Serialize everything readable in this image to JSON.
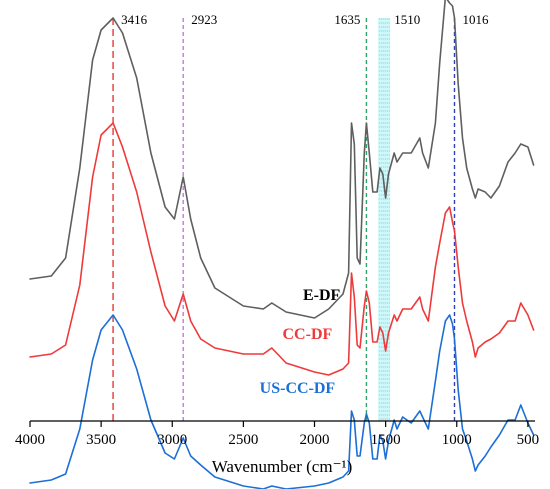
{
  "chart_data": {
    "type": "line",
    "xlabel": "Wavenumber (cm⁻¹)",
    "ylabel": "",
    "x_reversed": true,
    "xlim": [
      4000,
      450
    ],
    "x_ticks": [
      "4000",
      "3500",
      "3000",
      "2500",
      "2000",
      "1500",
      "1000",
      "500"
    ],
    "x_tick_values": [
      4000,
      3500,
      3000,
      2500,
      2000,
      1500,
      1000,
      500
    ],
    "y_ticks": false,
    "grid": false,
    "legend": "inline labels",
    "series": [
      {
        "name": "E-DF",
        "color": "#5f5f5f",
        "points": [
          [
            4000,
            0.13
          ],
          [
            3850,
            0.14
          ],
          [
            3750,
            0.2
          ],
          [
            3650,
            0.5
          ],
          [
            3560,
            0.86
          ],
          [
            3500,
            0.96
          ],
          [
            3416,
            1.0
          ],
          [
            3350,
            0.95
          ],
          [
            3250,
            0.8
          ],
          [
            3150,
            0.55
          ],
          [
            3050,
            0.37
          ],
          [
            2985,
            0.33
          ],
          [
            2923,
            0.47
          ],
          [
            2870,
            0.33
          ],
          [
            2800,
            0.2
          ],
          [
            2700,
            0.1
          ],
          [
            2500,
            0.04
          ],
          [
            2360,
            0.03
          ],
          [
            2300,
            0.05
          ],
          [
            2200,
            0.02
          ],
          [
            2000,
            0.0
          ],
          [
            1900,
            0.03
          ],
          [
            1800,
            0.08
          ],
          [
            1760,
            0.15
          ],
          [
            1740,
            0.65
          ],
          [
            1720,
            0.58
          ],
          [
            1700,
            0.2
          ],
          [
            1680,
            0.18
          ],
          [
            1650,
            0.55
          ],
          [
            1635,
            0.65
          ],
          [
            1615,
            0.55
          ],
          [
            1590,
            0.42
          ],
          [
            1560,
            0.42
          ],
          [
            1540,
            0.5
          ],
          [
            1520,
            0.48
          ],
          [
            1500,
            0.4
          ],
          [
            1480,
            0.48
          ],
          [
            1440,
            0.55
          ],
          [
            1420,
            0.52
          ],
          [
            1380,
            0.55
          ],
          [
            1320,
            0.55
          ],
          [
            1260,
            0.6
          ],
          [
            1240,
            0.55
          ],
          [
            1200,
            0.5
          ],
          [
            1150,
            0.65
          ],
          [
            1120,
            0.85
          ],
          [
            1080,
            1.07
          ],
          [
            1050,
            1.05
          ],
          [
            1030,
            1.04
          ],
          [
            1016,
            1.0
          ],
          [
            990,
            0.78
          ],
          [
            960,
            0.6
          ],
          [
            930,
            0.5
          ],
          [
            890,
            0.43
          ],
          [
            870,
            0.4
          ],
          [
            850,
            0.43
          ],
          [
            800,
            0.42
          ],
          [
            760,
            0.4
          ],
          [
            700,
            0.44
          ],
          [
            640,
            0.52
          ],
          [
            590,
            0.55
          ],
          [
            550,
            0.58
          ],
          [
            500,
            0.57
          ],
          [
            460,
            0.51
          ]
        ]
      },
      {
        "name": "CC-DF",
        "color": "#ee3a3a",
        "points": [
          [
            4000,
            0.0
          ],
          [
            3850,
            0.01
          ],
          [
            3750,
            0.04
          ],
          [
            3650,
            0.24
          ],
          [
            3560,
            0.6
          ],
          [
            3500,
            0.74
          ],
          [
            3416,
            0.78
          ],
          [
            3350,
            0.7
          ],
          [
            3250,
            0.55
          ],
          [
            3150,
            0.35
          ],
          [
            3050,
            0.17
          ],
          [
            2985,
            0.12
          ],
          [
            2923,
            0.21
          ],
          [
            2870,
            0.12
          ],
          [
            2800,
            0.06
          ],
          [
            2700,
            0.03
          ],
          [
            2500,
            0.01
          ],
          [
            2360,
            0.01
          ],
          [
            2300,
            0.03
          ],
          [
            2200,
            -0.02
          ],
          [
            2000,
            -0.05
          ],
          [
            1900,
            -0.06
          ],
          [
            1800,
            -0.04
          ],
          [
            1760,
            -0.02
          ],
          [
            1740,
            0.28
          ],
          [
            1720,
            0.2
          ],
          [
            1700,
            0.04
          ],
          [
            1680,
            0.03
          ],
          [
            1650,
            0.17
          ],
          [
            1635,
            0.22
          ],
          [
            1615,
            0.18
          ],
          [
            1590,
            0.05
          ],
          [
            1560,
            0.05
          ],
          [
            1540,
            0.1
          ],
          [
            1520,
            0.08
          ],
          [
            1500,
            0.02
          ],
          [
            1480,
            0.08
          ],
          [
            1440,
            0.14
          ],
          [
            1420,
            0.12
          ],
          [
            1380,
            0.16
          ],
          [
            1320,
            0.16
          ],
          [
            1260,
            0.2
          ],
          [
            1240,
            0.16
          ],
          [
            1200,
            0.12
          ],
          [
            1150,
            0.3
          ],
          [
            1120,
            0.38
          ],
          [
            1080,
            0.48
          ],
          [
            1050,
            0.5
          ],
          [
            1030,
            0.45
          ],
          [
            1016,
            0.42
          ],
          [
            990,
            0.3
          ],
          [
            960,
            0.18
          ],
          [
            930,
            0.12
          ],
          [
            890,
            0.05
          ],
          [
            870,
            0.0
          ],
          [
            850,
            0.03
          ],
          [
            800,
            0.05
          ],
          [
            760,
            0.06
          ],
          [
            700,
            0.08
          ],
          [
            640,
            0.12
          ],
          [
            590,
            0.12
          ],
          [
            550,
            0.18
          ],
          [
            500,
            0.14
          ],
          [
            460,
            0.09
          ]
        ]
      },
      {
        "name": "US-CC-DF",
        "color": "#1c6fd6",
        "points": [
          [
            4000,
            -0.26
          ],
          [
            3850,
            -0.25
          ],
          [
            3750,
            -0.23
          ],
          [
            3650,
            -0.08
          ],
          [
            3560,
            0.15
          ],
          [
            3500,
            0.25
          ],
          [
            3416,
            0.3
          ],
          [
            3350,
            0.25
          ],
          [
            3250,
            0.12
          ],
          [
            3150,
            -0.05
          ],
          [
            3050,
            -0.16
          ],
          [
            2985,
            -0.18
          ],
          [
            2923,
            -0.11
          ],
          [
            2870,
            -0.17
          ],
          [
            2800,
            -0.2
          ],
          [
            2700,
            -0.24
          ],
          [
            2500,
            -0.27
          ],
          [
            2360,
            -0.28
          ],
          [
            2300,
            -0.27
          ],
          [
            2200,
            -0.28
          ],
          [
            2000,
            -0.27
          ],
          [
            1900,
            -0.26
          ],
          [
            1800,
            -0.24
          ],
          [
            1760,
            -0.22
          ],
          [
            1740,
            -0.02
          ],
          [
            1720,
            -0.05
          ],
          [
            1700,
            -0.17
          ],
          [
            1680,
            -0.17
          ],
          [
            1650,
            -0.06
          ],
          [
            1635,
            -0.03
          ],
          [
            1615,
            -0.06
          ],
          [
            1590,
            -0.18
          ],
          [
            1560,
            -0.18
          ],
          [
            1540,
            -0.1
          ],
          [
            1520,
            -0.12
          ],
          [
            1500,
            -0.18
          ],
          [
            1480,
            -0.12
          ],
          [
            1440,
            -0.05
          ],
          [
            1420,
            -0.08
          ],
          [
            1380,
            -0.04
          ],
          [
            1320,
            -0.06
          ],
          [
            1260,
            -0.02
          ],
          [
            1240,
            -0.04
          ],
          [
            1200,
            -0.08
          ],
          [
            1150,
            0.08
          ],
          [
            1120,
            0.18
          ],
          [
            1080,
            0.28
          ],
          [
            1050,
            0.3
          ],
          [
            1030,
            0.27
          ],
          [
            1016,
            0.22
          ],
          [
            990,
            0.05
          ],
          [
            960,
            -0.08
          ],
          [
            930,
            -0.12
          ],
          [
            890,
            -0.18
          ],
          [
            870,
            -0.22
          ],
          [
            850,
            -0.2
          ],
          [
            800,
            -0.17
          ],
          [
            760,
            -0.14
          ],
          [
            700,
            -0.1
          ],
          [
            640,
            -0.05
          ],
          [
            590,
            -0.05
          ],
          [
            550,
            0.0
          ],
          [
            500,
            -0.06
          ],
          [
            460,
            -0.1
          ]
        ]
      }
    ],
    "label_anchors": [
      1950,
      2050,
      2120
    ],
    "reference_lines": [
      {
        "label": "3416",
        "x": 3416,
        "color": "#e53935",
        "dash": "long"
      },
      {
        "label": "2923",
        "x": 2923,
        "color": "#c678dd",
        "dash": "short"
      },
      {
        "label": "1635",
        "x": 1635,
        "color": "#2ea36a",
        "dash": "short"
      },
      {
        "label": "1510",
        "x": 1510,
        "color": "#7fe8ee",
        "dash": "band"
      },
      {
        "label": "1016",
        "x": 1016,
        "color": "#3040b8",
        "dash": "short"
      }
    ]
  }
}
